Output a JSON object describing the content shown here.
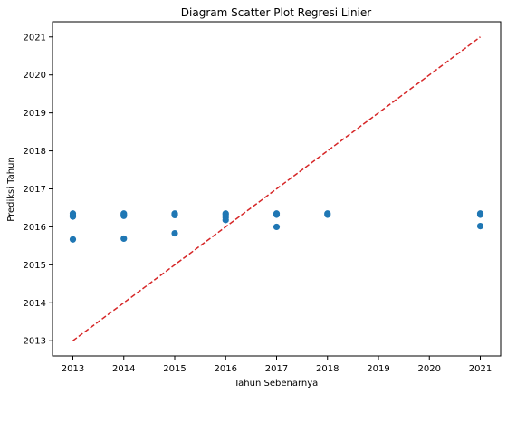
{
  "chart_data": {
    "type": "scatter",
    "title": "Diagram Scatter Plot Regresi Linier",
    "xlabel": "Tahun Sebenarnya",
    "ylabel": "Prediksi Tahun",
    "xlim": [
      2012.6,
      2021.4
    ],
    "ylim": [
      2012.6,
      2021.4
    ],
    "xticks": [
      "2013",
      "2014",
      "2015",
      "2016",
      "2017",
      "2018",
      "2019",
      "2020",
      "2021"
    ],
    "yticks": [
      "2013",
      "2014",
      "2015",
      "2016",
      "2017",
      "2018",
      "2019",
      "2020",
      "2021"
    ],
    "grid": false,
    "series": [
      {
        "kind": "scatter",
        "color": "#1f77b4",
        "points": [
          [
            2013,
            2016.35
          ],
          [
            2013,
            2016.3
          ],
          [
            2013,
            2016.27
          ],
          [
            2013,
            2015.67
          ],
          [
            2014,
            2016.35
          ],
          [
            2014,
            2016.32
          ],
          [
            2014,
            2016.29
          ],
          [
            2014,
            2015.69
          ],
          [
            2015,
            2016.35
          ],
          [
            2015,
            2016.33
          ],
          [
            2015,
            2016.31
          ],
          [
            2015,
            2015.83
          ],
          [
            2016,
            2016.35
          ],
          [
            2016,
            2016.32
          ],
          [
            2016,
            2016.25
          ],
          [
            2016,
            2016.18
          ],
          [
            2017,
            2016.35
          ],
          [
            2017,
            2016.32
          ],
          [
            2017,
            2016.0
          ],
          [
            2018,
            2016.35
          ],
          [
            2018,
            2016.32
          ],
          [
            2021,
            2016.35
          ],
          [
            2021,
            2016.32
          ],
          [
            2021,
            2016.02
          ]
        ]
      },
      {
        "kind": "line",
        "style": "dashed",
        "color": "#d62728",
        "points": [
          [
            2013,
            2013
          ],
          [
            2021,
            2021
          ]
        ]
      }
    ]
  }
}
